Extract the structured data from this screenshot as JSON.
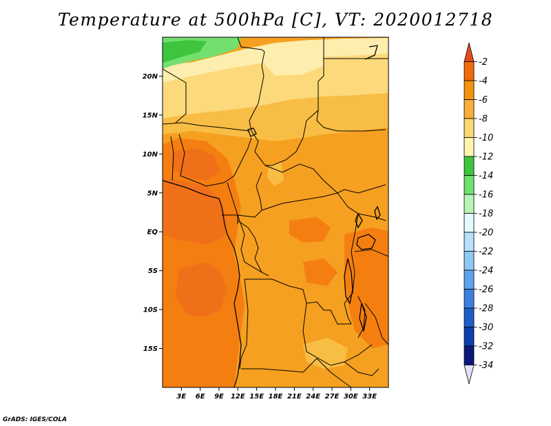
{
  "title": "Temperature at 500hPa [C], VT: 2020012718",
  "credit": "GrADS: IGES/COLA",
  "map": {
    "lon_range": [
      0,
      36
    ],
    "lat_range": [
      -20,
      25
    ],
    "lat_ticks": [
      {
        "value": 20,
        "label": "20N"
      },
      {
        "value": 15,
        "label": "15N"
      },
      {
        "value": 10,
        "label": "10N"
      },
      {
        "value": 5,
        "label": "5N"
      },
      {
        "value": 0,
        "label": "EQ"
      },
      {
        "value": -5,
        "label": "5S"
      },
      {
        "value": -10,
        "label": "10S"
      },
      {
        "value": -15,
        "label": "15S"
      }
    ],
    "lon_ticks": [
      {
        "value": 3,
        "label": "3E"
      },
      {
        "value": 6,
        "label": "6E"
      },
      {
        "value": 9,
        "label": "9E"
      },
      {
        "value": 12,
        "label": "12E"
      },
      {
        "value": 15,
        "label": "15E"
      },
      {
        "value": 18,
        "label": "18E"
      },
      {
        "value": 21,
        "label": "21E"
      },
      {
        "value": 24,
        "label": "24E"
      },
      {
        "value": 27,
        "label": "27E"
      },
      {
        "value": 30,
        "label": "30E"
      },
      {
        "value": 33,
        "label": "33E"
      }
    ]
  },
  "colorbar": {
    "levels": [
      "-2",
      "-4",
      "-6",
      "-8",
      "-10",
      "-12",
      "-14",
      "-16",
      "-18",
      "-20",
      "-22",
      "-24",
      "-26",
      "-28",
      "-30",
      "-32",
      "-34"
    ],
    "colors": [
      "#e84a1a",
      "#f26b0c",
      "#f5940c",
      "#f8ae38",
      "#fbd873",
      "#fef5b0",
      "#3ec43e",
      "#6ee26e",
      "#b6f5b6",
      "#e4fafe",
      "#b6e0fb",
      "#8ec8f3",
      "#5da4eb",
      "#3d80e1",
      "#1e5ec8",
      "#0c3fae",
      "#0b1877",
      "#e2e2f8"
    ]
  },
  "regions": {
    "fill_colors": {
      "red": "#f0701a",
      "dark_orange": "#f47f10",
      "orange": "#f5a020",
      "light_orange": "#f8bd45",
      "yellow": "#fcd97a",
      "pale_yellow": "#fdeeae",
      "green": "#3ec43e",
      "light_green": "#72df6e"
    }
  }
}
